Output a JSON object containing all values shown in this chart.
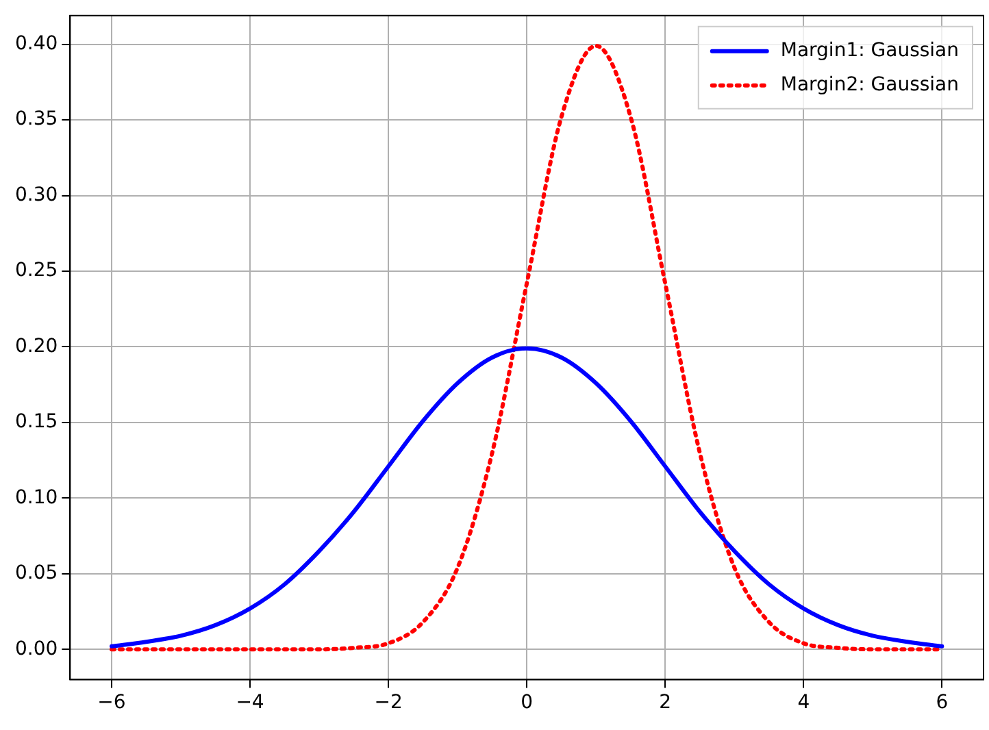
{
  "chart_data": {
    "type": "line",
    "x": [
      -6,
      -5.5,
      -5,
      -4.5,
      -4,
      -3.5,
      -3,
      -2.5,
      -2,
      -1.5,
      -1,
      -0.5,
      0,
      0.5,
      1,
      1.5,
      2,
      2.5,
      3,
      3.5,
      4,
      4.5,
      5,
      5.5,
      6
    ],
    "series": [
      {
        "name": "Margin1: Gaussian",
        "color": "#0000ff",
        "line_style": "solid",
        "values": [
          0.002,
          0.005,
          0.009,
          0.016,
          0.027,
          0.043,
          0.065,
          0.091,
          0.121,
          0.151,
          0.176,
          0.193,
          0.199,
          0.193,
          0.176,
          0.151,
          0.121,
          0.091,
          0.065,
          0.043,
          0.027,
          0.016,
          0.009,
          0.005,
          0.002
        ]
      },
      {
        "name": "Margin2: Gaussian",
        "color": "#ff0000",
        "line_style": "dotted",
        "values": [
          0,
          0,
          0,
          0,
          0,
          0,
          0,
          0.001,
          0.004,
          0.018,
          0.054,
          0.13,
          0.242,
          0.352,
          0.399,
          0.352,
          0.242,
          0.13,
          0.054,
          0.018,
          0.004,
          0.001,
          0,
          0,
          0
        ]
      }
    ],
    "xlim": [
      -6.6,
      6.6
    ],
    "xticks": [
      {
        "value": -6,
        "label": "−6"
      },
      {
        "value": -4,
        "label": "−4"
      },
      {
        "value": -2,
        "label": "−2"
      },
      0,
      2,
      4,
      6
    ],
    "ylim": [
      -0.02,
      0.419
    ],
    "yticks": [
      {
        "value": 0,
        "label": "0.00"
      },
      0.05,
      {
        "value": 0.1,
        "label": "0.10"
      },
      0.15,
      {
        "value": 0.2,
        "label": "0.20"
      },
      0.25,
      {
        "value": 0.3,
        "label": "0.30"
      },
      0.35,
      {
        "value": 0.4,
        "label": "0.40"
      }
    ],
    "grid": true,
    "legend": "top right",
    "marker": "none"
  }
}
